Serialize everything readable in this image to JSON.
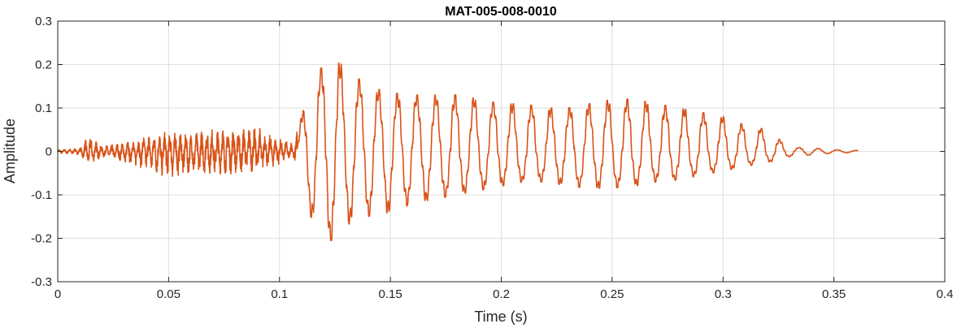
{
  "chart_data": {
    "type": "line",
    "title": "MAT-005-008-0010",
    "xlabel": "Time (s)",
    "ylabel": "Amplitude",
    "xlim": [
      0,
      0.4
    ],
    "ylim": [
      -0.3,
      0.3
    ],
    "xticks": [
      0,
      0.05,
      0.1,
      0.15,
      0.2,
      0.25,
      0.3,
      0.35,
      0.4
    ],
    "xtick_labels": [
      "0",
      "0.05",
      "0.1",
      "0.15",
      "0.2",
      "0.25",
      "0.3",
      "0.35",
      "0.4"
    ],
    "yticks": [
      -0.3,
      -0.2,
      -0.1,
      0,
      0.1,
      0.2,
      0.3
    ],
    "ytick_labels": [
      "-0.3",
      "-0.2",
      "-0.1",
      "0",
      "0.1",
      "0.2",
      "0.3"
    ],
    "grid": true,
    "series": [
      {
        "color": "#D95319",
        "x": [
          0,
          0.01,
          0.014,
          0.02,
          0.03,
          0.04,
          0.05,
          0.06,
          0.07,
          0.08,
          0.09,
          0.1,
          0.106,
          0.11,
          0.114,
          0.118,
          0.122,
          0.126,
          0.13,
          0.14,
          0.15,
          0.16,
          0.17,
          0.18,
          0.19,
          0.2,
          0.21,
          0.22,
          0.23,
          0.24,
          0.25,
          0.26,
          0.27,
          0.28,
          0.29,
          0.3,
          0.31,
          0.32,
          0.326,
          0.33,
          0.34,
          0.35,
          0.361
        ],
        "y_max": [
          0.004,
          0.007,
          0.035,
          0.012,
          0.02,
          0.035,
          0.045,
          0.04,
          0.05,
          0.055,
          0.055,
          0.03,
          0.02,
          0.08,
          0.18,
          0.19,
          0.2,
          0.21,
          0.19,
          0.15,
          0.135,
          0.13,
          0.13,
          0.13,
          0.12,
          0.11,
          0.11,
          0.1,
          0.1,
          0.11,
          0.12,
          0.12,
          0.11,
          0.1,
          0.09,
          0.08,
          0.06,
          0.05,
          0.025,
          0.01,
          0.008,
          0.004,
          0.002
        ],
        "y_min": [
          -0.004,
          -0.007,
          -0.03,
          -0.012,
          -0.025,
          -0.04,
          -0.06,
          -0.05,
          -0.05,
          -0.05,
          -0.045,
          -0.03,
          -0.01,
          -0.1,
          -0.15,
          -0.17,
          -0.205,
          -0.205,
          -0.17,
          -0.15,
          -0.14,
          -0.12,
          -0.11,
          -0.1,
          -0.09,
          -0.08,
          -0.07,
          -0.07,
          -0.08,
          -0.085,
          -0.085,
          -0.08,
          -0.07,
          -0.065,
          -0.055,
          -0.045,
          -0.035,
          -0.025,
          -0.02,
          -0.012,
          -0.008,
          -0.004,
          -0.002
        ]
      }
    ]
  }
}
